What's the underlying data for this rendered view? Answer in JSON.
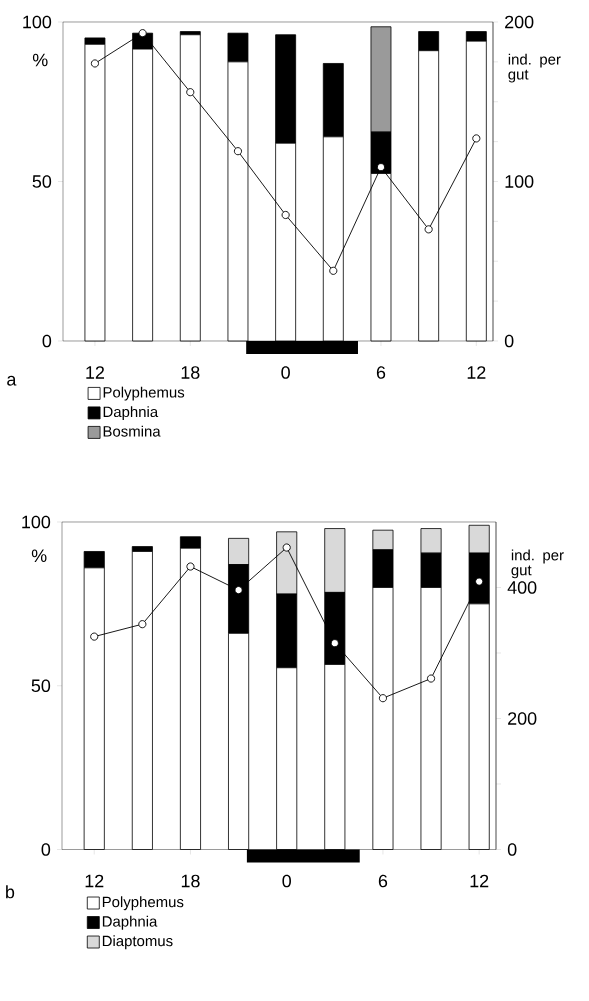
{
  "chart_data": [
    {
      "type": "bar",
      "title": "a",
      "stacked": true,
      "ylabel": "%",
      "y2label": "ind. per gut",
      "legend": "bottom",
      "categories": [
        "12",
        null,
        "18",
        null,
        "0",
        null,
        "6",
        null,
        "12"
      ],
      "ylim": [
        0,
        100
      ],
      "yticks": [
        0,
        50,
        100
      ],
      "y2lim": [
        0,
        200
      ],
      "y2ticks": [
        0,
        {
          "value": 25,
          "label": null
        },
        {
          "value": 50,
          "label": null
        },
        {
          "value": 75,
          "label": null
        },
        100,
        {
          "value": 125,
          "label": null
        },
        {
          "value": 150,
          "label": null
        },
        {
          "value": 175,
          "label": null
        },
        200
      ],
      "series": [
        {
          "name": "Polyphemus",
          "color": "#ffffff",
          "values": [
            93,
            91.5,
            96,
            87.5,
            62,
            64,
            52.5,
            91,
            94
          ]
        },
        {
          "name": "Daphnia",
          "color": "#000000",
          "values": [
            2,
            5,
            1,
            9,
            34,
            23,
            13,
            6,
            3
          ]
        },
        {
          "name": "Bosmina",
          "color": "#9a9a9a",
          "values": [
            0,
            0,
            0,
            0,
            0,
            0,
            33,
            0,
            0
          ]
        },
        {
          "type": "line",
          "axis": "y2",
          "color": "#000000",
          "marker": "circle",
          "values": [
            174,
            193,
            156,
            119,
            79,
            44,
            109,
            70,
            127
          ]
        }
      ]
    },
    {
      "type": "bar",
      "title": "b",
      "stacked": true,
      "ylabel": "%",
      "y2label": "ind. per gut",
      "legend": "bottom",
      "categories": [
        "12",
        null,
        "18",
        null,
        "0",
        null,
        "6",
        null,
        "12"
      ],
      "ylim": [
        0,
        100
      ],
      "yticks": [
        0,
        50,
        100
      ],
      "y2lim": [
        0,
        500
      ],
      "y2ticks": [
        0,
        {
          "value": 100,
          "label": null
        },
        200,
        {
          "value": 300,
          "label": null
        },
        400
      ],
      "series": [
        {
          "name": "Polyphemus",
          "color": "#ffffff",
          "values": [
            86,
            91,
            92,
            66,
            55.5,
            56.5,
            80,
            80,
            75
          ]
        },
        {
          "name": "Daphnia",
          "color": "#000000",
          "values": [
            5,
            1.5,
            3.5,
            21,
            22.5,
            22,
            11.5,
            10.5,
            15.5
          ]
        },
        {
          "name": "Diaptomus",
          "color": "#d9d9d9",
          "values": [
            0,
            0,
            0,
            8,
            19,
            19.5,
            6,
            7.5,
            8.5
          ]
        },
        {
          "type": "line",
          "axis": "y2",
          "color": "#000000",
          "marker": "circle",
          "values": [
            325,
            344,
            432,
            396,
            461,
            315,
            231,
            261,
            409
          ]
        }
      ]
    }
  ]
}
